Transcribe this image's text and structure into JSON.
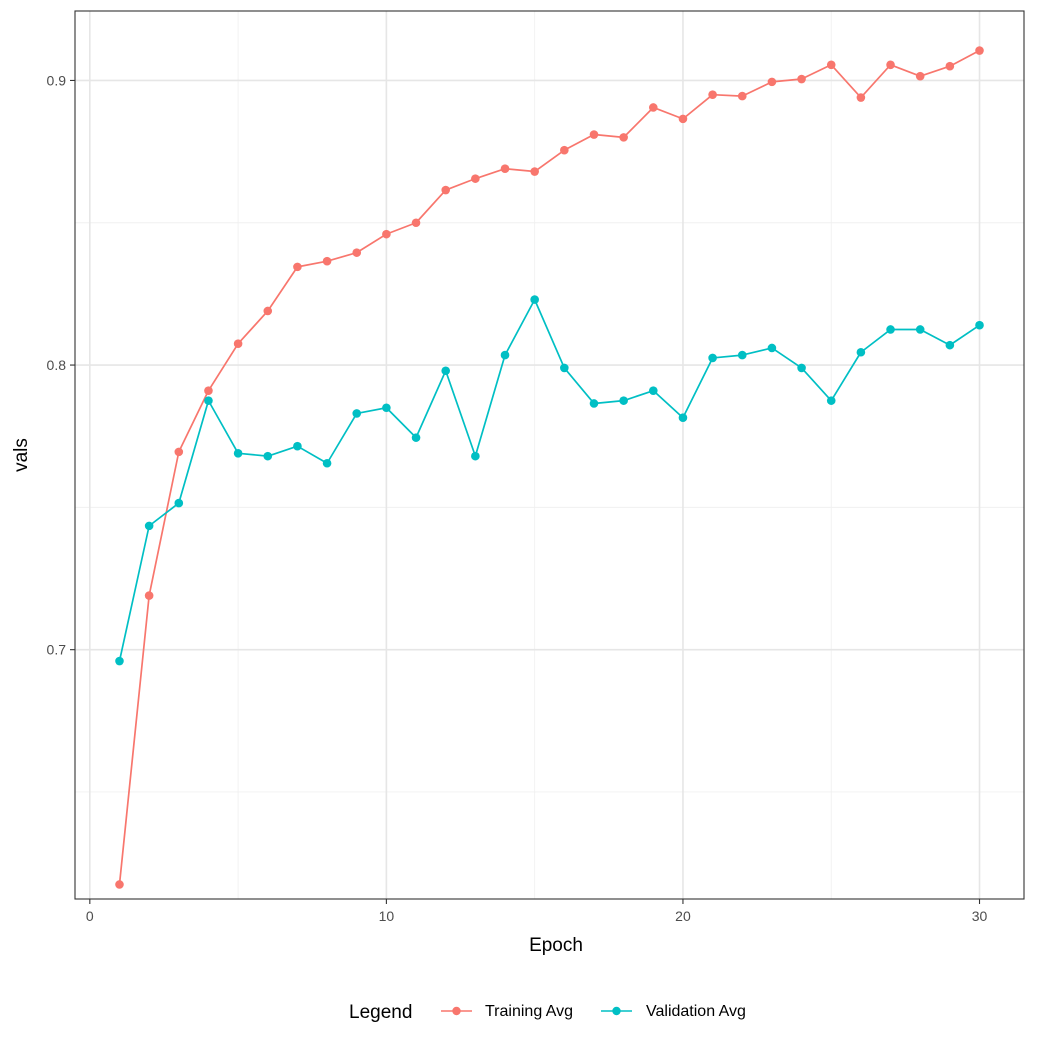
{
  "chart_data": {
    "type": "line",
    "title": "",
    "xlabel": "Epoch",
    "ylabel": "vals",
    "xlim": [
      -0.5,
      31.5
    ],
    "ylim": [
      0.6124,
      0.9244
    ],
    "x_ticks_major": [
      0,
      10,
      20,
      30
    ],
    "x_ticks_minor": [
      5,
      15,
      25
    ],
    "y_ticks_major": [
      0.7,
      0.8,
      0.9
    ],
    "y_ticks_minor": [
      0.65,
      0.75,
      0.85
    ],
    "x_tick_labels": [
      "0",
      "10",
      "20",
      "30"
    ],
    "y_tick_labels": [
      "0.7",
      "0.8",
      "0.9"
    ],
    "grid": true,
    "legend": {
      "title": "Legend",
      "placement": "bottom"
    },
    "x": [
      1,
      2,
      3,
      4,
      5,
      6,
      7,
      8,
      9,
      10,
      11,
      12,
      13,
      14,
      15,
      16,
      17,
      18,
      19,
      20,
      21,
      22,
      23,
      24,
      25,
      26,
      27,
      28,
      29,
      30
    ],
    "series": [
      {
        "name": "Training Avg",
        "color": "#F8766D",
        "values": [
          0.6175,
          0.719,
          0.7695,
          0.791,
          0.8075,
          0.819,
          0.8345,
          0.8365,
          0.8395,
          0.846,
          0.85,
          0.8615,
          0.8655,
          0.869,
          0.868,
          0.8755,
          0.881,
          0.88,
          0.8905,
          0.8865,
          0.895,
          0.8945,
          0.8995,
          0.9005,
          0.9055,
          0.894,
          0.9055,
          0.9015,
          0.905,
          0.9105
        ]
      },
      {
        "name": "Validation Avg",
        "color": "#00BFC4",
        "values": [
          0.696,
          0.7435,
          0.7515,
          0.7875,
          0.769,
          0.768,
          0.7715,
          0.7655,
          0.783,
          0.785,
          0.7745,
          0.798,
          0.768,
          0.8035,
          0.823,
          0.799,
          0.7865,
          0.7875,
          0.791,
          0.7815,
          0.8025,
          0.8035,
          0.806,
          0.799,
          0.7875,
          0.8045,
          0.8125,
          0.8125,
          0.807,
          0.814
        ]
      }
    ]
  }
}
